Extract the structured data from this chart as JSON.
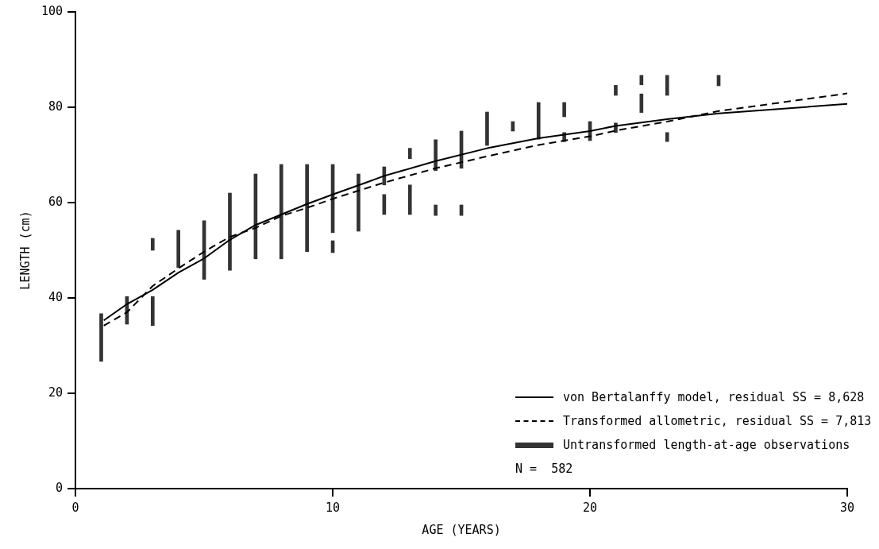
{
  "chart_data": {
    "type": "line",
    "xlabel": "AGE (YEARS)",
    "ylabel": "LENGTH (cm)",
    "xlim": [
      0,
      30
    ],
    "xticks": [
      0,
      10,
      20,
      30
    ],
    "ylim": [
      0,
      100
    ],
    "yticks": [
      0,
      20,
      40,
      60,
      80,
      100
    ],
    "grid": false,
    "legend": "bottom right",
    "marker": "none",
    "series": [
      {
        "name": "von Bertalanffy model, residual SS = 8,628",
        "line_style": "solid",
        "color": "#000000",
        "x": [
          1.1,
          2,
          3,
          4,
          5,
          6,
          7,
          8,
          9,
          10,
          11.3,
          12,
          14,
          16,
          18,
          20,
          21,
          23,
          25,
          30
        ],
        "values": [
          35.3,
          38.7,
          41.7,
          45.3,
          48.3,
          52.2,
          55.3,
          57.5,
          59.7,
          61.7,
          64.2,
          65.6,
          68.7,
          71.4,
          73.5,
          75,
          76.1,
          77.5,
          78.7,
          80.7
        ]
      },
      {
        "name": "Transformed allometric, residual SS = 7,813",
        "line_style": "dashed",
        "color": "#000000",
        "x": [
          1.1,
          2,
          3,
          4,
          5,
          6,
          7,
          8,
          9,
          10,
          11.3,
          12,
          14,
          16,
          18,
          20,
          21,
          23,
          25,
          30
        ],
        "values": [
          34.2,
          37,
          42.5,
          46.2,
          49.7,
          52.8,
          54.7,
          57.2,
          58.9,
          60.8,
          63,
          64.2,
          67.2,
          69.7,
          72.1,
          73.9,
          75.1,
          77,
          79.2,
          82.9
        ]
      },
      {
        "name": "Untransformed length-at-age observations",
        "type": "bar",
        "color": "#333333",
        "x": [
          1,
          2,
          3,
          4,
          5,
          6,
          7,
          8,
          9,
          10,
          11,
          12,
          13,
          14,
          15,
          16,
          17,
          18,
          19,
          20,
          21,
          22,
          23,
          25
        ],
        "base": [
          26.7,
          34.5,
          34.2,
          46.4,
          43.9,
          45.8,
          48.2,
          48.2,
          49.7,
          49.5,
          54,
          57.5,
          57.5,
          57.3,
          57.3,
          72,
          75,
          73.3,
          72.8,
          73,
          74.7,
          78.9,
          72.8,
          84.5
        ],
        "values": [
          10,
          5.8,
          6.1,
          7.8,
          12.3,
          16.2,
          17.8,
          19.8,
          18.3,
          2.5,
          12,
          4.2,
          6.2,
          2.2,
          2.2,
          7,
          2,
          7.7,
          1.9,
          4,
          2,
          3.9,
          1.9,
          2.2
        ]
      },
      {
        "type": "bar",
        "color": "#333333",
        "x": [
          3,
          10,
          12,
          13,
          14,
          15,
          19,
          21,
          22,
          23
        ],
        "base": [
          50,
          53.7,
          63.7,
          69.2,
          66.7,
          67.2,
          78,
          82.5,
          84.7,
          82.5
        ],
        "values": [
          2.5,
          14.3,
          3.8,
          2.2,
          6.5,
          7.8,
          3,
          2.1,
          2,
          4.2
        ]
      }
    ],
    "annotations": [
      "N =  582"
    ]
  }
}
